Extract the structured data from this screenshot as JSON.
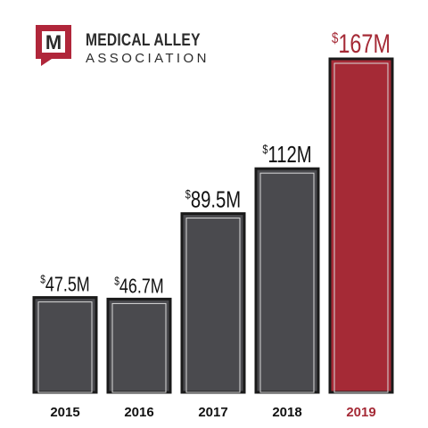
{
  "logo": {
    "mark": "M",
    "line1": "MEDICAL ALLEY",
    "line2": "ASSOCIATION"
  },
  "colors": {
    "bar": "#4a4a4e",
    "bar_highlight": "#a52a36",
    "outline": "#1a1a1a",
    "inner_line": "#d9d9d9",
    "text_dark": "#111111",
    "logo_red": "#b0263a"
  },
  "chart_data": {
    "type": "bar",
    "categories": [
      "2015",
      "2016",
      "2017",
      "2018",
      "2019"
    ],
    "values": [
      47.5,
      46.7,
      89.5,
      112,
      167
    ],
    "value_labels": [
      "47.5M",
      "46.7M",
      "89.5M",
      "112M",
      "167M"
    ],
    "currency_symbol": "$",
    "highlight_index": 4,
    "ylim": [
      0,
      167
    ],
    "grid": false,
    "title": "",
    "xlabel": "",
    "ylabel": ""
  }
}
